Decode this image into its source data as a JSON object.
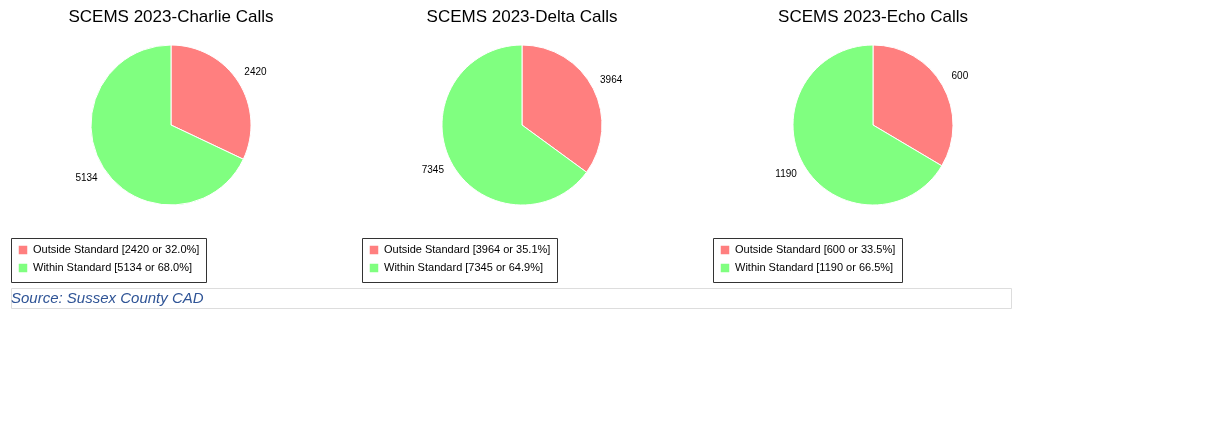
{
  "chart_data": [
    {
      "type": "pie",
      "title": "SCEMS 2023-Charlie Calls",
      "categories": [
        "Outside Standard [2420 or 32.0%]",
        "Within Standard [5134 or 68.0%]"
      ],
      "values": [
        2420,
        5134
      ],
      "colors": [
        "#ff7f7f",
        "#80ff80"
      ],
      "data_labels": true,
      "legend": "bottom"
    },
    {
      "type": "pie",
      "title": "SCEMS 2023-Delta Calls",
      "categories": [
        "Outside Standard [3964 or 35.1%]",
        "Within Standard [7345 or 64.9%]"
      ],
      "values": [
        3964,
        7345
      ],
      "colors": [
        "#ff7f7f",
        "#80ff80"
      ],
      "data_labels": true,
      "legend": "bottom"
    },
    {
      "type": "pie",
      "title": "SCEMS 2023-Echo Calls",
      "categories": [
        "Outside Standard [600 or 33.5%]",
        "Within Standard [1190 or 66.5%]"
      ],
      "values": [
        600,
        1190
      ],
      "colors": [
        "#ff7f7f",
        "#80ff80"
      ],
      "data_labels": true,
      "legend": "bottom",
      "annotations": [
        "Source:  Sussex County CAD"
      ]
    }
  ]
}
